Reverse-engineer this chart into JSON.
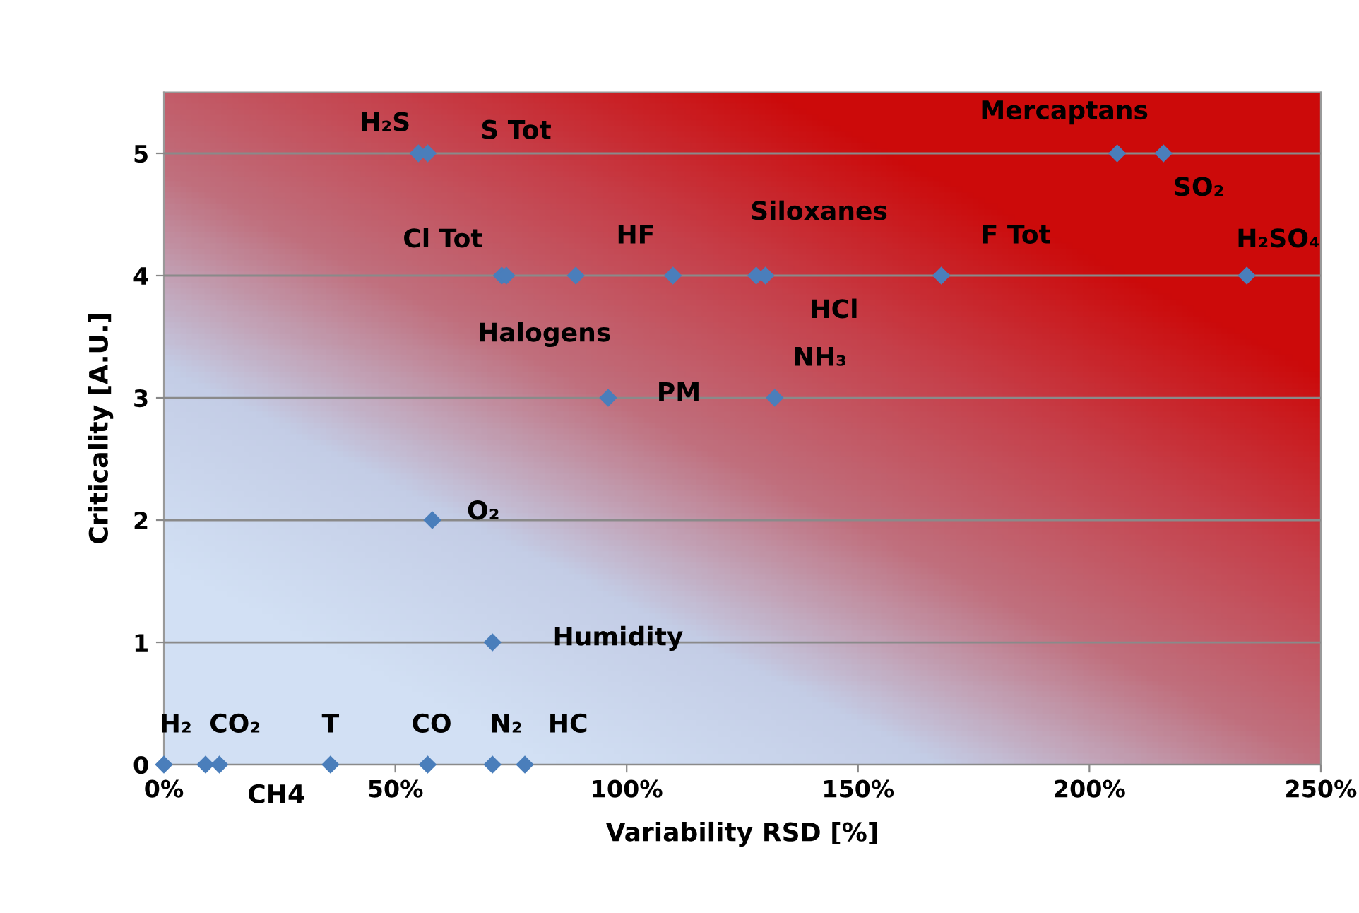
{
  "chart_data": {
    "type": "scatter",
    "xlabel": "Variability RSD [%]",
    "ylabel": "Criticality [A.U.]",
    "x": [
      0,
      9,
      12,
      36,
      57,
      71,
      78,
      71,
      58,
      96,
      132,
      55,
      57,
      73,
      74,
      89,
      110,
      128,
      130,
      168,
      234,
      206,
      216
    ],
    "values": [
      0,
      0,
      0,
      0,
      0,
      0,
      0,
      1,
      2,
      3,
      3,
      5,
      5,
      4,
      4,
      4,
      4,
      4,
      4,
      4,
      4,
      5,
      5
    ],
    "color": "#4a7ebb",
    "marker": "diamond",
    "xlim": [
      0,
      250
    ],
    "ylim": [
      0,
      5.5
    ],
    "xticks": [
      {
        "value": 0,
        "label": "0%"
      },
      {
        "value": 50,
        "label": "50%"
      },
      {
        "value": 100,
        "label": "100%"
      },
      {
        "value": 150,
        "label": "150%"
      },
      {
        "value": 200,
        "label": "200%"
      },
      {
        "value": 250,
        "label": "250%"
      }
    ],
    "yticks": [
      0,
      1,
      2,
      3,
      4,
      5
    ],
    "grid": "y",
    "annotations": [
      {
        "text": "H₂",
        "x": 0,
        "y": 0
      },
      {
        "text": "CO₂",
        "x": 9,
        "y": 0
      },
      {
        "text": "CH4",
        "x": 12,
        "y": 0
      },
      {
        "text": "T",
        "x": 36,
        "y": 0
      },
      {
        "text": "CO",
        "x": 57,
        "y": 0
      },
      {
        "text": "N₂",
        "x": 71,
        "y": 0
      },
      {
        "text": "HC",
        "x": 78,
        "y": 0
      },
      {
        "text": "Humidity",
        "x": 71,
        "y": 1
      },
      {
        "text": "O₂",
        "x": 58,
        "y": 2
      },
      {
        "text": "PM",
        "x": 96,
        "y": 3
      },
      {
        "text": "NH₃",
        "x": 132,
        "y": 3
      },
      {
        "text": "H₂S",
        "x": 55,
        "y": 5
      },
      {
        "text": "S Tot",
        "x": 57,
        "y": 5
      },
      {
        "text": "Cl Tot",
        "x": 73,
        "y": 4
      },
      {
        "text": "Halogens",
        "x": 89,
        "y": 4
      },
      {
        "text": "HF",
        "x": 110,
        "y": 4
      },
      {
        "text": "Siloxanes",
        "x": 128,
        "y": 4
      },
      {
        "text": "HCl",
        "x": 130,
        "y": 4
      },
      {
        "text": "F Tot",
        "x": 168,
        "y": 4
      },
      {
        "text": "H₂SO₄",
        "x": 234,
        "y": 4
      },
      {
        "text": "Mercaptans",
        "x": 206,
        "y": 5
      },
      {
        "text": "SO₂",
        "x": 216,
        "y": 5
      }
    ]
  }
}
